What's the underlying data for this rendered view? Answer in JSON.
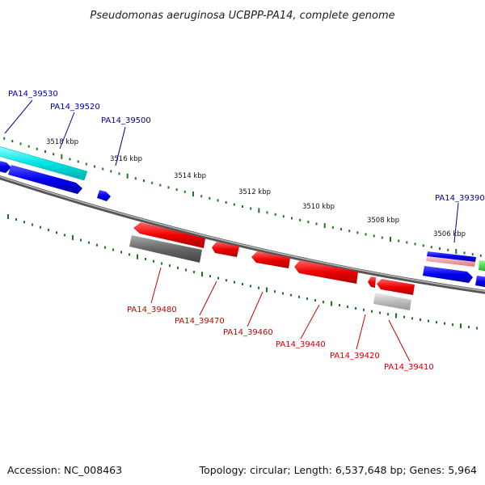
{
  "title": "Pseudomonas aeruginosa UCBPP-PA14, complete genome",
  "footer": {
    "accession": "Accession: NC_008463",
    "summary": "Topology: circular; Length: 6,537,648 bp; Genes: 5,964"
  },
  "scale_labels": [
    "3518 kbp",
    "3516 kbp",
    "3514 kbp",
    "3512 kbp",
    "3510 kbp",
    "3508 kbp",
    "3506 kbp"
  ],
  "genes_top": [
    "PA14_39530",
    "PA14_39520",
    "PA14_39500",
    "PA14_39390"
  ],
  "genes_bottom": [
    "PA14_39480",
    "PA14_39470",
    "PA14_39460",
    "PA14_39440",
    "PA14_39420",
    "PA14_39410"
  ],
  "colors": {
    "forward": "#0000ee",
    "reverse": "#ee0000",
    "rna": "#00e5e5",
    "pseudo": "#777777",
    "tick": "#1a7a1a",
    "backbone": "#888888",
    "label_top": "#000099",
    "label_bottom": "#cc0000"
  }
}
